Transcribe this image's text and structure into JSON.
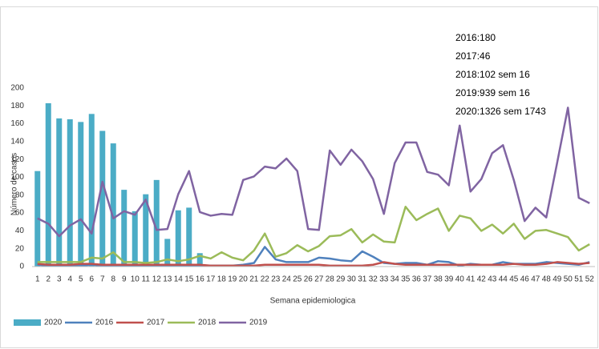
{
  "chart_data": {
    "type": "combo",
    "y_label": "Número de casos",
    "x_label": "Semana epidemiologica",
    "annotations": [
      "2016:180",
      "2017:46",
      "2018:102 sem 16",
      "2019:939 sem 16",
      "2020:1326 sem 1743"
    ],
    "categories": [
      "1",
      "2",
      "3",
      "4",
      "5",
      "6",
      "7",
      "8",
      "9",
      "10",
      "11",
      "12",
      "13",
      "14",
      "15",
      "16",
      "17",
      "18",
      "19",
      "20",
      "21",
      "22",
      "23",
      "24",
      "25",
      "26",
      "27",
      "28",
      "29",
      "30",
      "31",
      "32",
      "33",
      "34",
      "35",
      "36",
      "37",
      "38",
      "39",
      "40",
      "41",
      "42",
      "43",
      "44",
      "45",
      "46",
      "47",
      "48",
      "49",
      "50",
      "51",
      "52"
    ],
    "ylim": [
      0,
      200
    ],
    "yticks": [
      0,
      20,
      40,
      60,
      80,
      100,
      120,
      140,
      160,
      180,
      200
    ],
    "grid": false,
    "legend": "bottom",
    "series": [
      {
        "name": "2020",
        "type": "bar",
        "color": "#4bacc6",
        "values": [
          107,
          183,
          166,
          165,
          162,
          171,
          152,
          138,
          86,
          62,
          81,
          97,
          31,
          63,
          66,
          15,
          null,
          null,
          null,
          null,
          null,
          null,
          null,
          null,
          null,
          null,
          null,
          null,
          null,
          null,
          null,
          null,
          null,
          null,
          null,
          null,
          null,
          null,
          null,
          null,
          null,
          null,
          null,
          null,
          null,
          null,
          null,
          null,
          null,
          null,
          null,
          null
        ]
      },
      {
        "name": "2016",
        "type": "line",
        "color": "#4f81bd",
        "values": [
          2,
          1,
          1,
          1,
          1,
          2,
          1,
          1,
          1,
          1,
          1,
          1,
          1,
          1,
          1,
          1,
          1,
          1,
          1,
          2,
          4,
          22,
          8,
          5,
          5,
          5,
          10,
          9,
          7,
          6,
          17,
          11,
          4,
          3,
          4,
          4,
          2,
          6,
          5,
          1,
          3,
          2,
          2,
          5,
          3,
          3,
          3,
          5,
          4,
          3,
          2,
          5
        ]
      },
      {
        "name": "2017",
        "type": "line",
        "color": "#c0504d",
        "values": [
          3,
          2,
          2,
          2,
          3,
          3,
          2,
          2,
          2,
          2,
          2,
          2,
          2,
          2,
          2,
          2,
          1,
          1,
          1,
          1,
          1,
          2,
          2,
          2,
          2,
          2,
          2,
          1,
          1,
          1,
          1,
          2,
          5,
          3,
          2,
          2,
          2,
          2,
          2,
          2,
          2,
          2,
          2,
          2,
          3,
          2,
          2,
          3,
          5,
          4,
          3,
          4
        ]
      },
      {
        "name": "2018",
        "type": "line",
        "color": "#9bbb59",
        "values": [
          5,
          5,
          5,
          5,
          5,
          10,
          9,
          16,
          5,
          5,
          4,
          5,
          8,
          6,
          8,
          12,
          9,
          16,
          10,
          7,
          18,
          37,
          11,
          15,
          24,
          17,
          23,
          34,
          35,
          42,
          27,
          36,
          28,
          27,
          67,
          52,
          59,
          65,
          40,
          57,
          54,
          40,
          47,
          37,
          48,
          31,
          40,
          41,
          37,
          33,
          18,
          25
        ]
      },
      {
        "name": "2019",
        "type": "line",
        "color": "#8064a2",
        "values": [
          54,
          48,
          34,
          46,
          53,
          37,
          95,
          54,
          62,
          58,
          75,
          41,
          42,
          81,
          107,
          61,
          57,
          59,
          58,
          97,
          101,
          112,
          110,
          121,
          107,
          42,
          41,
          130,
          114,
          131,
          118,
          98,
          59,
          116,
          139,
          139,
          106,
          103,
          91,
          158,
          84,
          98,
          127,
          136,
          97,
          51,
          66,
          55,
          116,
          178,
          77,
          71
        ]
      }
    ]
  }
}
